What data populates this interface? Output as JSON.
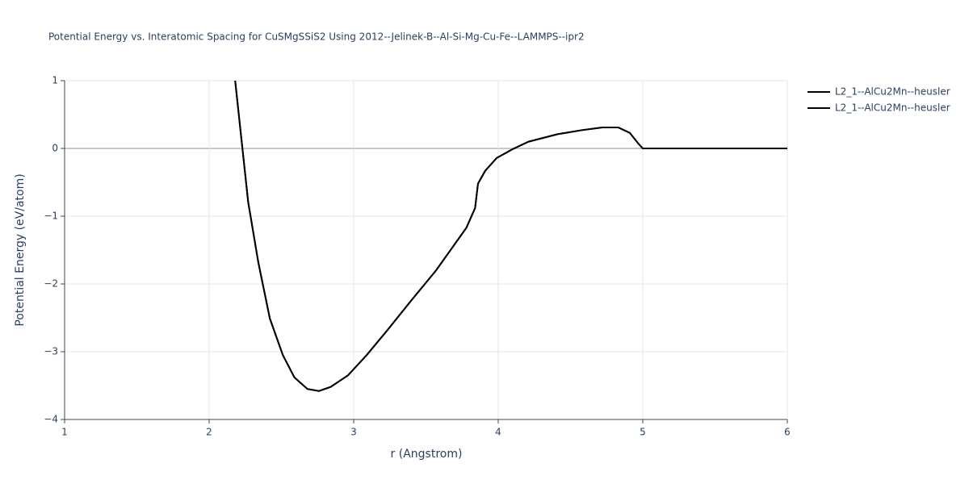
{
  "chart_data": {
    "type": "line",
    "title": "Potential Energy vs. Interatomic Spacing for CuSMgSSiS2 Using 2012--Jelinek-B--Al-Si-Mg-Cu-Fe--LAMMPS--ipr2",
    "x_label": "r (Angstrom)",
    "y_label": "Potential Energy (eV/atom)",
    "xlim": [
      1,
      6
    ],
    "ylim": [
      -4,
      1
    ],
    "xticks": [
      1,
      2,
      3,
      4,
      5,
      6
    ],
    "yticks": [
      {
        "value": -4,
        "label": "−4"
      },
      {
        "value": -3,
        "label": "−3"
      },
      {
        "value": -2,
        "label": "−2"
      },
      {
        "value": -1,
        "label": "−1"
      },
      0,
      1
    ],
    "grid": true,
    "series": [
      {
        "name": "L2_1--AlCu2Mn--heusler",
        "color": "#000000",
        "x": [
          2.18,
          2.27,
          2.34,
          2.42,
          2.51,
          2.59,
          2.68,
          2.76,
          2.84,
          2.96,
          3.09,
          3.23,
          3.4,
          3.57,
          3.71,
          3.78,
          3.84,
          3.86,
          3.91,
          3.99,
          4.1,
          4.21,
          4.41,
          4.58,
          4.72,
          4.83,
          4.91,
          4.97,
          5.0,
          6.0
        ],
        "values": [
          1.0,
          -0.79,
          -1.68,
          -2.51,
          -3.05,
          -3.38,
          -3.55,
          -3.58,
          -3.52,
          -3.35,
          -3.05,
          -2.69,
          -2.24,
          -1.8,
          -1.38,
          -1.17,
          -0.88,
          -0.52,
          -0.33,
          -0.14,
          -0.01,
          0.1,
          0.21,
          0.27,
          0.31,
          0.31,
          0.23,
          0.07,
          0.0,
          0.0
        ]
      },
      {
        "name": "L2_1--AlCu2Mn--heusler",
        "color": "#000000",
        "x": [
          2.18,
          2.27,
          2.34,
          2.42,
          2.51,
          2.59,
          2.68,
          2.76,
          2.84,
          2.96,
          3.09,
          3.23,
          3.4,
          3.57,
          3.71,
          3.78,
          3.84,
          3.86,
          3.91,
          3.99,
          4.1,
          4.21,
          4.41,
          4.58,
          4.72,
          4.83,
          4.91,
          4.97,
          5.0,
          6.0
        ],
        "values": [
          1.0,
          -0.79,
          -1.68,
          -2.51,
          -3.05,
          -3.38,
          -3.55,
          -3.58,
          -3.52,
          -3.35,
          -3.05,
          -2.69,
          -2.24,
          -1.8,
          -1.38,
          -1.17,
          -0.88,
          -0.52,
          -0.33,
          -0.14,
          -0.01,
          0.1,
          0.21,
          0.27,
          0.31,
          0.31,
          0.23,
          0.07,
          0.0,
          0.0
        ]
      }
    ]
  }
}
